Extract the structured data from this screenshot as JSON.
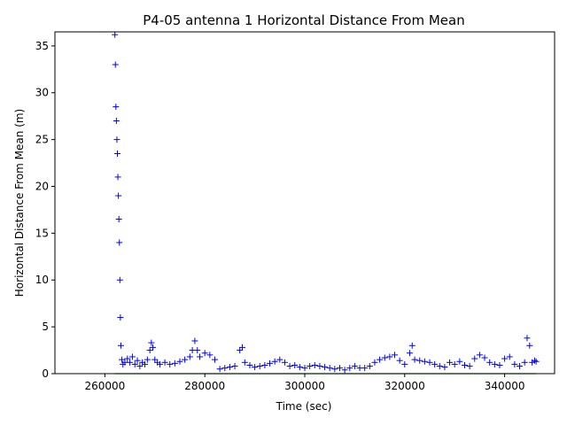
{
  "chart_data": {
    "type": "scatter",
    "title": "P4-05 antenna 1 Horizontal Distance From Mean",
    "xlabel": "Time (sec)",
    "ylabel": "Horizontal Distance From Mean (m)",
    "xlim": [
      250000,
      350000
    ],
    "ylim": [
      0,
      36.5
    ],
    "x_ticks": [
      260000,
      280000,
      300000,
      320000,
      340000
    ],
    "y_ticks": [
      0,
      5,
      10,
      15,
      20,
      25,
      30,
      35
    ],
    "grid": false,
    "legend": "none",
    "colors": {
      "points": "#0000ff",
      "baseline": "#00aa00"
    },
    "marker": "plus",
    "series": [
      {
        "x": [
          262000,
          262100,
          262200,
          262300,
          262400,
          262500,
          262600,
          262700,
          262800,
          262900,
          263000,
          263100,
          263200,
          263400,
          263600,
          264000,
          264500,
          265000,
          265500,
          266000,
          266500,
          267000,
          267500,
          268000,
          268500,
          269000,
          269300,
          269600,
          270000,
          270500,
          271000,
          272000,
          273000,
          274000,
          275000,
          276000,
          277000,
          277500,
          278000,
          278500,
          279000,
          280000,
          281000,
          282000,
          283000,
          284000,
          285000,
          286000,
          287000,
          287500,
          288000,
          289000,
          290000,
          291000,
          292000,
          293000,
          294000,
          295000,
          296000,
          297000,
          298000,
          299000,
          300000,
          301000,
          302000,
          303000,
          304000,
          305000,
          306000,
          307000,
          308000,
          309000,
          310000,
          311000,
          312000,
          313000,
          314000,
          315000,
          316000,
          317000,
          318000,
          319000,
          320000,
          321000,
          321500,
          322000,
          323000,
          324000,
          325000,
          326000,
          327000,
          328000,
          329000,
          330000,
          331000,
          332000,
          333000,
          334000,
          335000,
          336000,
          337000,
          338000,
          339000,
          340000,
          341000,
          342000,
          343000,
          344000,
          344500,
          345000,
          345500,
          346000,
          346300
        ],
        "y": [
          36.2,
          33.0,
          28.5,
          27.0,
          25.0,
          23.5,
          21.0,
          19.0,
          16.5,
          14.0,
          10.0,
          6.0,
          3.0,
          1.5,
          1.0,
          1.2,
          1.6,
          1.2,
          1.8,
          1.0,
          1.4,
          0.8,
          1.2,
          1.0,
          1.5,
          2.5,
          3.3,
          2.8,
          1.5,
          1.2,
          1.0,
          1.2,
          1.0,
          1.1,
          1.3,
          1.5,
          1.8,
          2.5,
          3.5,
          2.5,
          1.8,
          2.2,
          2.0,
          1.5,
          0.5,
          0.6,
          0.7,
          0.8,
          2.5,
          2.8,
          1.2,
          0.9,
          0.7,
          0.8,
          0.9,
          1.1,
          1.3,
          1.5,
          1.2,
          0.8,
          0.9,
          0.7,
          0.6,
          0.8,
          0.9,
          0.8,
          0.7,
          0.6,
          0.5,
          0.6,
          0.4,
          0.6,
          0.8,
          0.6,
          0.6,
          0.8,
          1.2,
          1.5,
          1.7,
          1.8,
          2.0,
          1.4,
          1.0,
          2.2,
          3.0,
          1.5,
          1.4,
          1.3,
          1.2,
          1.0,
          0.8,
          0.7,
          1.2,
          1.0,
          1.3,
          0.9,
          0.8,
          1.6,
          2.0,
          1.7,
          1.2,
          1.0,
          0.9,
          1.6,
          1.8,
          1.0,
          0.8,
          1.2,
          3.8,
          3.0,
          1.2,
          1.4,
          1.3
        ]
      }
    ]
  }
}
